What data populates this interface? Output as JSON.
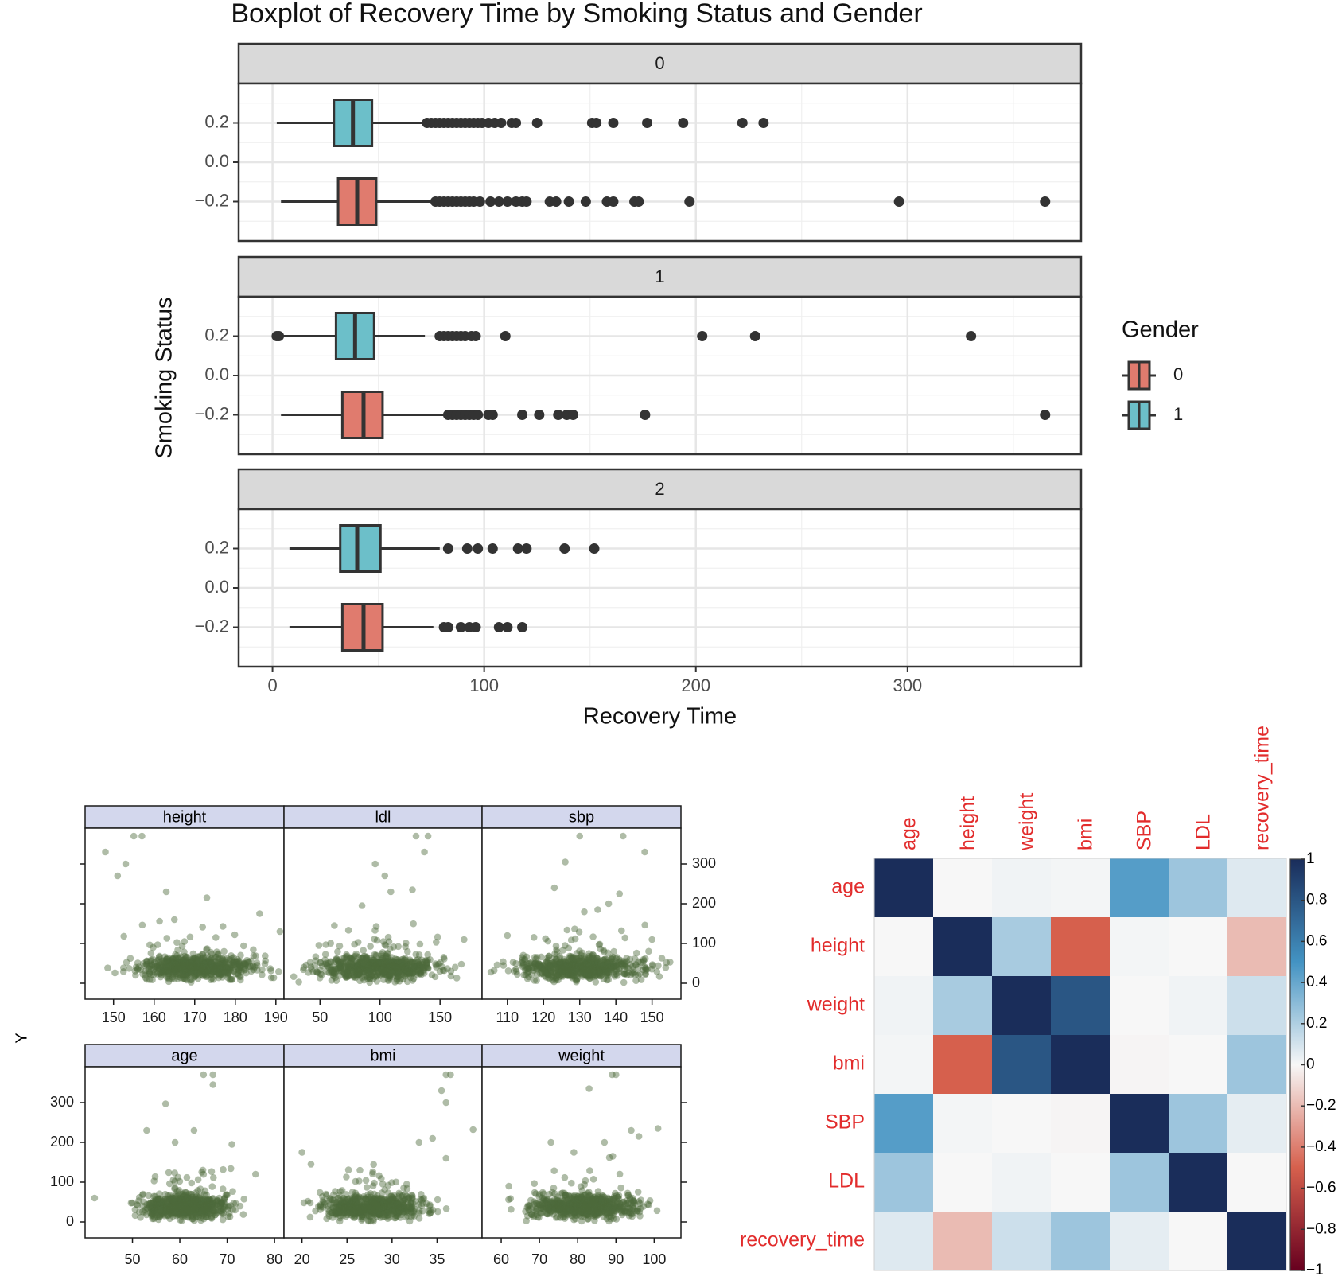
{
  "chart_data": [
    {
      "type": "boxplot",
      "title": "Boxplot of Recovery Time by Smoking Status and Gender",
      "xlabel": "Recovery Time",
      "ylabel": "Smoking Status",
      "xlim": [
        -16,
        382
      ],
      "ylim": [
        -0.4,
        0.4
      ],
      "x_ticks": [
        0,
        100,
        200,
        300
      ],
      "y_ticks": [
        0.2,
        0.0,
        -0.2
      ],
      "y_tick_labels": [
        "0.2",
        "0.0",
        "−0.2"
      ],
      "grid": true,
      "legend": {
        "title": "Gender",
        "position": "right",
        "entries": [
          {
            "label": "0",
            "color": "#e07b6e"
          },
          {
            "label": "1",
            "color": "#6cbfc9"
          }
        ]
      },
      "facets": [
        {
          "label": "0",
          "boxes": [
            {
              "gender": "1",
              "y": 0.2,
              "whisker_low": 2,
              "q1": 29,
              "median": 38,
              "q3": 47,
              "whisker_high": 71,
              "outliers": [
                73,
                75,
                77,
                79,
                81,
                83,
                85,
                87,
                89,
                91,
                93,
                95,
                97,
                99,
                102,
                105,
                108,
                113,
                115,
                125,
                151,
                153,
                161,
                177,
                194,
                222,
                232
              ]
            },
            {
              "gender": "0",
              "y": -0.2,
              "whisker_low": 4,
              "q1": 31,
              "median": 40,
              "q3": 49,
              "whisker_high": 75,
              "outliers": [
                77,
                79,
                81,
                83,
                85,
                87,
                89,
                91,
                93,
                95,
                98,
                103,
                107,
                111,
                115,
                118,
                120,
                131,
                134,
                140,
                148,
                158,
                161,
                171,
                173,
                197,
                296,
                365
              ]
            }
          ]
        },
        {
          "label": "1",
          "boxes": [
            {
              "gender": "1",
              "y": 0.2,
              "whisker_low": 2,
              "q1": 30,
              "median": 39,
              "q3": 48,
              "whisker_high": 72,
              "outliers": [
                2,
                3,
                79,
                81,
                83,
                85,
                87,
                89,
                91,
                94,
                96,
                110,
                203,
                228,
                330
              ]
            },
            {
              "gender": "0",
              "y": -0.2,
              "whisker_low": 4,
              "q1": 33,
              "median": 43,
              "q3": 52,
              "whisker_high": 82,
              "outliers": [
                83,
                85,
                87,
                89,
                91,
                93,
                95,
                97,
                102,
                104,
                118,
                126,
                135,
                139,
                142,
                176,
                365
              ]
            }
          ]
        },
        {
          "label": "2",
          "boxes": [
            {
              "gender": "1",
              "y": 0.2,
              "whisker_low": 8,
              "q1": 32,
              "median": 40,
              "q3": 51,
              "whisker_high": 79,
              "outliers": [
                83,
                92,
                97,
                104,
                116,
                120,
                138,
                152
              ]
            },
            {
              "gender": "0",
              "y": -0.2,
              "whisker_low": 8,
              "q1": 33,
              "median": 43,
              "q3": 52,
              "whisker_high": 76,
              "outliers": [
                81,
                83,
                89,
                93,
                96,
                107,
                111,
                118
              ]
            }
          ]
        }
      ]
    },
    {
      "type": "scatter",
      "ylabel": "Y",
      "y_ticks": [
        0,
        100,
        200,
        300
      ],
      "point_color": "#4d6b3c",
      "panels": [
        {
          "label": "height",
          "xlim": [
            143,
            192
          ],
          "x_ticks": [
            150,
            160,
            170,
            180,
            190
          ],
          "center": 170,
          "spread": 7,
          "extra_points": [
            [
              148,
              330
            ],
            [
              151,
              270
            ],
            [
              155,
              370
            ],
            [
              157,
              370
            ],
            [
              153,
              300
            ],
            [
              163,
              230
            ],
            [
              173,
              215
            ],
            [
              186,
              175
            ],
            [
              191,
              130
            ],
            [
              165,
              160
            ]
          ]
        },
        {
          "label": "ldl",
          "xlim": [
            20,
            185
          ],
          "x_ticks": [
            50,
            100,
            150
          ],
          "center": 100,
          "spread": 25,
          "extra_points": [
            [
              130,
              370
            ],
            [
              140,
              370
            ],
            [
              137,
              330
            ],
            [
              96,
              300
            ],
            [
              104,
              270
            ],
            [
              109,
              230
            ],
            [
              127,
              235
            ],
            [
              85,
              195
            ],
            [
              62,
              145
            ],
            [
              170,
              110
            ]
          ]
        },
        {
          "label": "sbp",
          "xlim": [
            103,
            158
          ],
          "x_ticks": [
            110,
            120,
            130,
            140,
            150
          ],
          "center": 130,
          "spread": 9,
          "extra_points": [
            [
              130,
              370
            ],
            [
              142,
              370
            ],
            [
              148,
              330
            ],
            [
              126,
              305
            ],
            [
              123,
              240
            ],
            [
              141,
              225
            ],
            [
              138,
              200
            ],
            [
              135,
              185
            ],
            [
              150,
              110
            ],
            [
              110,
              120
            ]
          ]
        },
        {
          "label": "age",
          "xlim": [
            40,
            82
          ],
          "x_ticks": [
            50,
            60,
            70,
            80
          ],
          "center": 61,
          "spread": 4.5,
          "extra_points": [
            [
              65,
              370
            ],
            [
              67,
              370
            ],
            [
              67,
              345
            ],
            [
              57,
              297
            ],
            [
              53,
              230
            ],
            [
              63,
              230
            ],
            [
              71,
              195
            ],
            [
              59,
              200
            ],
            [
              76,
              120
            ],
            [
              42,
              60
            ]
          ]
        },
        {
          "label": "bmi",
          "xlim": [
            18,
            40
          ],
          "x_ticks": [
            20,
            25,
            30,
            35
          ],
          "center": 28,
          "spread": 2.8,
          "extra_points": [
            [
              36,
              370
            ],
            [
              36.5,
              370
            ],
            [
              35.5,
              330
            ],
            [
              36,
              300
            ],
            [
              39,
              232
            ],
            [
              34.5,
              210
            ],
            [
              33,
              200
            ],
            [
              20,
              175
            ],
            [
              21,
              145
            ],
            [
              36,
              160
            ]
          ]
        },
        {
          "label": "weight",
          "xlim": [
            55,
            107
          ],
          "x_ticks": [
            60,
            70,
            80,
            90,
            100
          ],
          "center": 82,
          "spread": 7,
          "extra_points": [
            [
              89,
              370
            ],
            [
              90,
              370
            ],
            [
              83,
              335
            ],
            [
              94,
              230
            ],
            [
              96,
              215
            ],
            [
              101,
              235
            ],
            [
              87,
              200
            ],
            [
              73,
              200
            ],
            [
              79,
              175
            ],
            [
              62,
              90
            ]
          ]
        }
      ]
    },
    {
      "type": "heatmap",
      "variables": [
        "age",
        "height",
        "weight",
        "bmi",
        "SBP",
        "LDL",
        "recovery_time"
      ],
      "label_color": "#e22c2c",
      "matrix": [
        [
          1.0,
          0.0,
          0.02,
          0.01,
          0.45,
          0.25,
          0.07
        ],
        [
          0.0,
          1.0,
          0.22,
          -0.5,
          0.01,
          0.0,
          -0.2
        ],
        [
          0.02,
          0.22,
          1.0,
          0.8,
          0.0,
          0.02,
          0.12
        ],
        [
          0.01,
          -0.5,
          0.8,
          1.0,
          -0.01,
          0.0,
          0.25
        ],
        [
          0.45,
          0.01,
          0.0,
          -0.01,
          1.0,
          0.25,
          0.05
        ],
        [
          0.25,
          0.0,
          0.02,
          0.0,
          0.25,
          1.0,
          0.0
        ],
        [
          0.07,
          -0.2,
          0.12,
          0.25,
          0.05,
          0.0,
          1.0
        ]
      ],
      "colorbar_ticks": [
        1,
        0.8,
        0.6,
        0.4,
        0.2,
        0,
        -0.2,
        -0.4,
        -0.6,
        -0.8,
        -1
      ],
      "colorbar_labels": [
        "1",
        "0.8",
        "0.6",
        "0.4",
        "0.2",
        "0",
        "−0.2",
        "−0.4",
        "−0.6",
        "−0.8",
        "−1"
      ]
    }
  ]
}
